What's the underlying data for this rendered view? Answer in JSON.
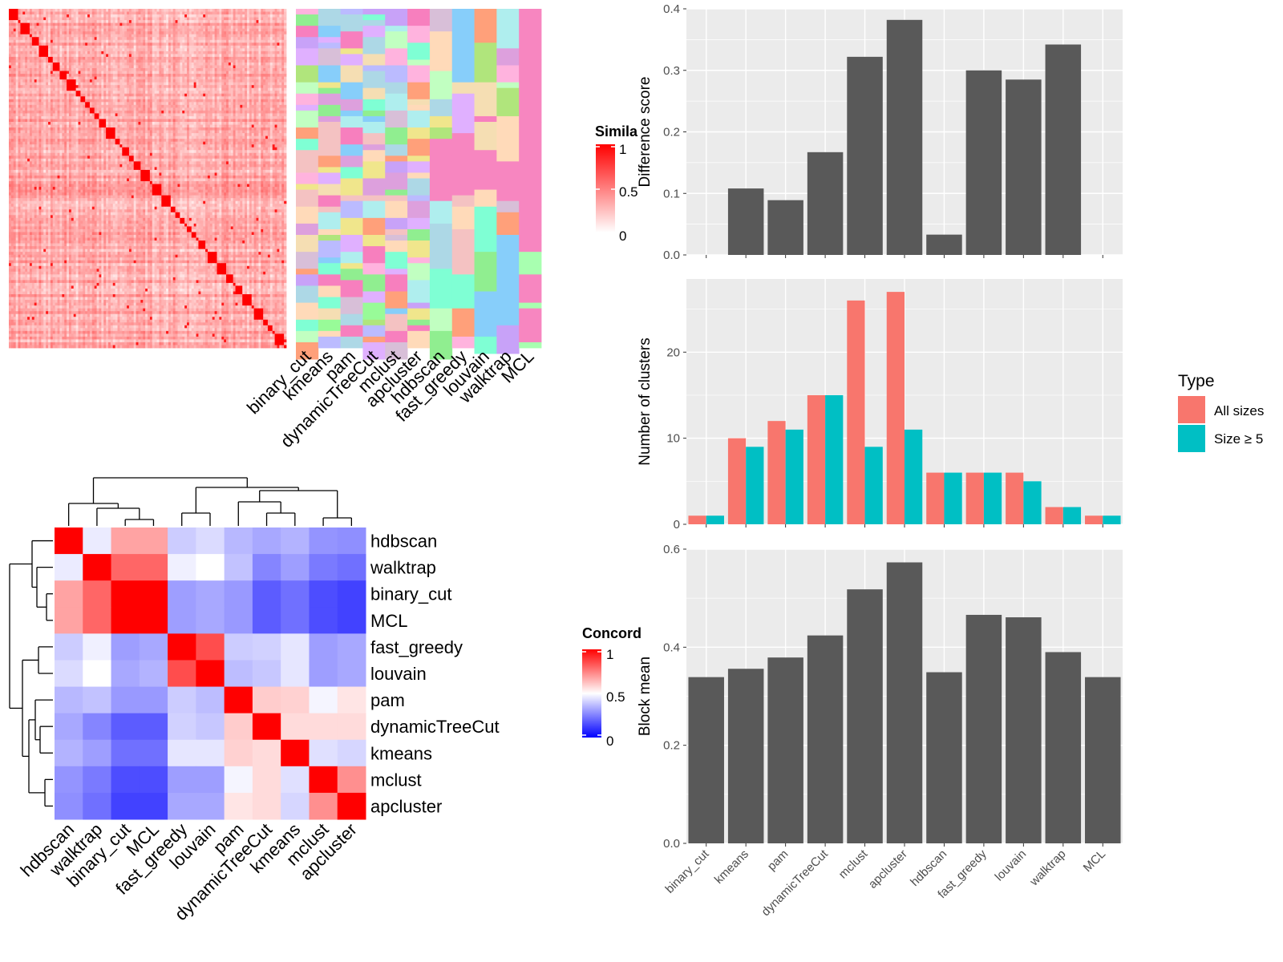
{
  "methods": [
    "binary_cut",
    "kmeans",
    "pam",
    "dynamicTreeCut",
    "mclust",
    "apcluster",
    "hdbscan",
    "fast_greedy",
    "louvain",
    "walktrap",
    "MCL"
  ],
  "similarity_legend": {
    "title": "Simila",
    "ticks": [
      "1",
      "0.5",
      "0"
    ]
  },
  "concordance_legend": {
    "title": "Concord",
    "ticks": [
      "1",
      "0.5",
      "0"
    ]
  },
  "type_legend": {
    "title": "Type",
    "items": [
      "All sizes",
      "Size ≥ 5"
    ]
  },
  "colors": {
    "all_sizes": "#F8766D",
    "size5": "#00BFC4",
    "bar": "#595959",
    "panel": "#EBEBEB",
    "high": "#FF0000",
    "low": "#0000FF"
  },
  "chart_data": [
    {
      "type": "heatmap",
      "name": "similarity",
      "legend_title": "Simila",
      "scale_ticks": [
        0,
        0.5,
        1
      ]
    },
    {
      "type": "heatmap",
      "name": "cluster_assignment",
      "columns": [
        "binary_cut",
        "kmeans",
        "pam",
        "dynamicTreeCut",
        "mclust",
        "apcluster",
        "hdbscan",
        "fast_greedy",
        "louvain",
        "walktrap",
        "MCL"
      ]
    },
    {
      "type": "heatmap",
      "name": "concordance",
      "legend_title": "Concord",
      "scale_ticks": [
        0,
        0.5,
        1
      ],
      "rows": [
        "hdbscan",
        "walktrap",
        "binary_cut",
        "MCL",
        "fast_greedy",
        "louvain",
        "pam",
        "dynamicTreeCut",
        "kmeans",
        "mclust",
        "apcluster"
      ],
      "columns": [
        "hdbscan",
        "walktrap",
        "binary_cut",
        "MCL",
        "fast_greedy",
        "louvain",
        "pam",
        "dynamicTreeCut",
        "kmeans",
        "mclust",
        "apcluster"
      ],
      "values": [
        [
          1.0,
          0.46,
          0.68,
          0.68,
          0.4,
          0.43,
          0.36,
          0.33,
          0.35,
          0.29,
          0.28
        ],
        [
          0.46,
          1.0,
          0.8,
          0.8,
          0.47,
          0.5,
          0.38,
          0.26,
          0.31,
          0.24,
          0.22
        ],
        [
          0.68,
          0.8,
          1.0,
          1.0,
          0.31,
          0.33,
          0.3,
          0.18,
          0.22,
          0.15,
          0.13
        ],
        [
          0.68,
          0.8,
          1.0,
          1.0,
          0.31,
          0.33,
          0.3,
          0.18,
          0.22,
          0.15,
          0.13
        ],
        [
          0.4,
          0.47,
          0.31,
          0.33,
          1.0,
          0.85,
          0.4,
          0.41,
          0.45,
          0.31,
          0.33
        ],
        [
          0.43,
          0.5,
          0.33,
          0.35,
          0.85,
          1.0,
          0.37,
          0.39,
          0.45,
          0.31,
          0.33
        ],
        [
          0.36,
          0.38,
          0.3,
          0.3,
          0.4,
          0.37,
          1.0,
          0.6,
          0.59,
          0.48,
          0.55
        ],
        [
          0.33,
          0.26,
          0.18,
          0.18,
          0.41,
          0.39,
          0.6,
          1.0,
          0.57,
          0.57,
          0.57
        ],
        [
          0.35,
          0.31,
          0.22,
          0.22,
          0.45,
          0.45,
          0.59,
          0.57,
          1.0,
          0.44,
          0.42
        ],
        [
          0.29,
          0.24,
          0.15,
          0.15,
          0.31,
          0.31,
          0.48,
          0.57,
          0.44,
          1.0,
          0.72
        ],
        [
          0.28,
          0.22,
          0.13,
          0.13,
          0.33,
          0.33,
          0.55,
          0.57,
          0.42,
          0.72,
          1.0
        ]
      ]
    },
    {
      "type": "bar",
      "name": "difference",
      "categories": [
        "binary_cut",
        "kmeans",
        "pam",
        "dynamicTreeCut",
        "mclust",
        "apcluster",
        "hdbscan",
        "fast_greedy",
        "louvain",
        "walktrap",
        "MCL"
      ],
      "values": [
        0,
        0.108,
        0.089,
        0.167,
        0.322,
        0.382,
        0.033,
        0.3,
        0.285,
        0.342,
        0
      ],
      "ylabel": "Difference score",
      "ylim": [
        0,
        0.4
      ],
      "yticks": [
        0.0,
        0.1,
        0.2,
        0.3,
        0.4
      ],
      "ytick_labels": [
        "0.0",
        "0.1",
        "0.2",
        "0.3",
        "0.4"
      ]
    },
    {
      "type": "bar",
      "name": "clusters",
      "categories": [
        "binary_cut",
        "kmeans",
        "pam",
        "dynamicTreeCut",
        "mclust",
        "apcluster",
        "hdbscan",
        "fast_greedy",
        "louvain",
        "walktrap",
        "MCL"
      ],
      "series": [
        {
          "name": "All sizes",
          "values": [
            1,
            10,
            12,
            15,
            26,
            27,
            6,
            6,
            6,
            2,
            1
          ]
        },
        {
          "name": "Size ≥ 5",
          "values": [
            1,
            9,
            11,
            15,
            9,
            11,
            6,
            6,
            5,
            2,
            1
          ]
        }
      ],
      "ylabel": "Number of clusters",
      "ylim": [
        0,
        28.5
      ],
      "yticks": [
        0,
        10,
        20
      ],
      "ytick_labels": [
        "0",
        "10",
        "20"
      ],
      "legend": "right"
    },
    {
      "type": "bar",
      "name": "block_mean",
      "categories": [
        "binary_cut",
        "kmeans",
        "pam",
        "dynamicTreeCut",
        "mclust",
        "apcluster",
        "hdbscan",
        "fast_greedy",
        "louvain",
        "walktrap",
        "MCL"
      ],
      "values": [
        0.339,
        0.356,
        0.379,
        0.424,
        0.518,
        0.573,
        0.349,
        0.466,
        0.461,
        0.39,
        0.339
      ],
      "ylabel": "Block mean",
      "ylim": [
        0,
        0.6
      ],
      "yticks": [
        0.0,
        0.2,
        0.4,
        0.6
      ],
      "ytick_labels": [
        "0.0",
        "0.2",
        "0.4",
        "0.6"
      ]
    }
  ]
}
